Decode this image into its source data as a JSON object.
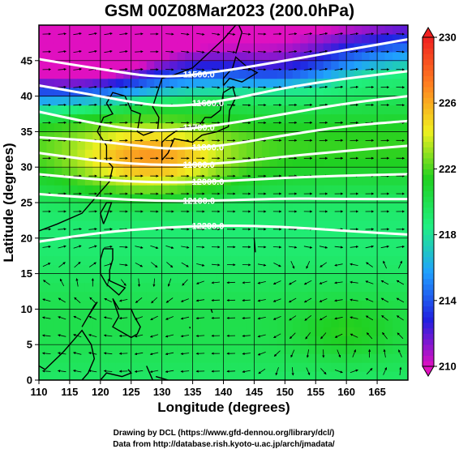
{
  "chart_data": {
    "type": "heatmap",
    "title": "GSM 00Z08Mar2023 (200.0hPa)",
    "xlabel": "Longitude (degrees)",
    "ylabel": "Latitude  (degrees)",
    "xlim": [
      110,
      170
    ],
    "ylim": [
      0,
      50
    ],
    "x_ticks": [
      "110",
      "115",
      "120",
      "125",
      "130",
      "135",
      "140",
      "145",
      "150",
      "155",
      "160",
      "165"
    ],
    "y_ticks": [
      "0",
      "5",
      "10",
      "15",
      "20",
      "25",
      "30",
      "35",
      "40",
      "45"
    ],
    "grid": true,
    "colorbar": {
      "range": [
        210,
        230
      ],
      "ticks": [
        "210",
        "214",
        "218",
        "222",
        "226",
        "230"
      ],
      "colors": [
        "#e010c0",
        "#2020e0",
        "#20a0ff",
        "#20f080",
        "#20d020",
        "#f0f020",
        "#ff8020",
        "#f02020"
      ],
      "placement": "right"
    },
    "contours": [
      {
        "label": "11500.0",
        "points": [
          [
            110,
            45.2
          ],
          [
            120,
            43.8
          ],
          [
            130,
            42.5
          ],
          [
            140,
            43.5
          ],
          [
            150,
            45.0
          ],
          [
            160,
            46.5
          ],
          [
            170,
            48.0
          ]
        ]
      },
      {
        "label": "11600.0",
        "points": [
          [
            110,
            41.5
          ],
          [
            118,
            40.3
          ],
          [
            126,
            39.0
          ],
          [
            132,
            38.5
          ],
          [
            140,
            39.3
          ],
          [
            150,
            41.2
          ],
          [
            160,
            42.5
          ],
          [
            170,
            43.5
          ]
        ]
      },
      {
        "label": "11700.0",
        "points": [
          [
            110,
            37.8
          ],
          [
            118,
            36.3
          ],
          [
            126,
            35.2
          ],
          [
            132,
            35.2
          ],
          [
            140,
            36.0
          ],
          [
            150,
            37.5
          ],
          [
            160,
            39.0
          ],
          [
            170,
            40.0
          ]
        ]
      },
      {
        "label": "11800.0",
        "points": [
          [
            110,
            34.2
          ],
          [
            118,
            33.8
          ],
          [
            126,
            33.0
          ],
          [
            132,
            32.5
          ],
          [
            140,
            33.0
          ],
          [
            150,
            34.5
          ],
          [
            160,
            35.8
          ],
          [
            170,
            36.5
          ]
        ]
      },
      {
        "label": "11900.0",
        "points": [
          [
            110,
            32.0
          ],
          [
            120,
            30.8
          ],
          [
            130,
            30.2
          ],
          [
            140,
            30.5
          ],
          [
            150,
            31.5
          ],
          [
            160,
            32.3
          ],
          [
            170,
            33.0
          ]
        ]
      },
      {
        "label": "12000.0",
        "points": [
          [
            110,
            29.0
          ],
          [
            120,
            28.2
          ],
          [
            130,
            27.8
          ],
          [
            140,
            28.0
          ],
          [
            150,
            28.5
          ],
          [
            160,
            28.8
          ],
          [
            170,
            29.0
          ]
        ]
      },
      {
        "label": "12100.0",
        "points": [
          [
            110,
            26.2
          ],
          [
            120,
            25.6
          ],
          [
            130,
            25.2
          ],
          [
            140,
            25.3
          ],
          [
            150,
            25.6
          ],
          [
            160,
            25.5
          ],
          [
            170,
            25.5
          ]
        ]
      },
      {
        "label": "12200.0",
        "points": [
          [
            110,
            19.5
          ],
          [
            120,
            20.8
          ],
          [
            130,
            21.5
          ],
          [
            140,
            21.8
          ],
          [
            150,
            21.6
          ],
          [
            160,
            21.0
          ],
          [
            170,
            20.5
          ]
        ]
      }
    ]
  },
  "credits": {
    "line1": "Drawing by DCL (https://www.gfd-dennou.org/library/dcl/)",
    "line2": "Data from http://database.rish.kyoto-u.ac.jp/arch/jmadata/"
  }
}
